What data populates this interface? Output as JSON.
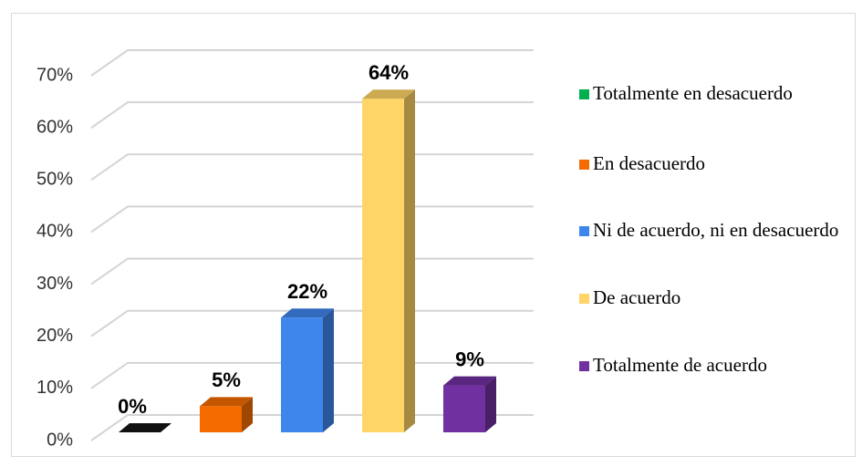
{
  "chart_data": {
    "type": "bar3d",
    "categories": [
      "Totalmente en desacuerdo",
      "En desacuerdo",
      "Ni de acuerdo, ni en desacuerdo",
      "De acuerdo",
      "Totalmente de acuerdo"
    ],
    "values": [
      0,
      5,
      22,
      64,
      9
    ],
    "value_labels": [
      "0%",
      "5%",
      "22%",
      "64%",
      "9%"
    ],
    "colors": [
      "#00b050",
      "#f56b00",
      "#3f86ec",
      "#ffd567",
      "#7030a0"
    ],
    "ylim": [
      0,
      70
    ],
    "yticks": [
      {
        "value": 0,
        "label": "0%"
      },
      {
        "value": 10,
        "label": "10%"
      },
      {
        "value": 20,
        "label": "20%"
      },
      {
        "value": 30,
        "label": "30%"
      },
      {
        "value": 40,
        "label": "40%"
      },
      {
        "value": 50,
        "label": "50%"
      },
      {
        "value": 60,
        "label": "60%"
      },
      {
        "value": 70,
        "label": "70%"
      }
    ],
    "grid": true,
    "legend": "right"
  }
}
